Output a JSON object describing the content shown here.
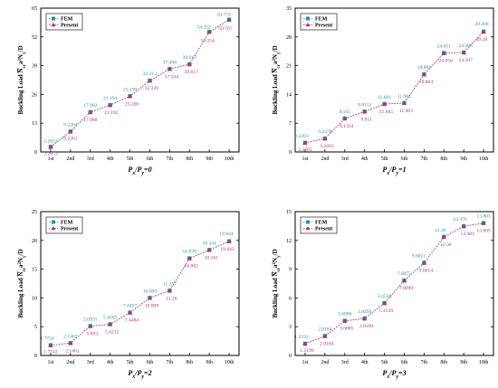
{
  "colors": {
    "fem": "#2e8f9a",
    "present": "#a23a7c",
    "fem_line": "#4aa7ae",
    "present_line": "#b44a8a"
  },
  "legend": {
    "fem": "FEM",
    "present": "Present"
  },
  "chart_data": [
    {
      "type": "line",
      "categories": [
        "1st",
        "2nd",
        "3rd",
        "4th",
        "5th",
        "6th",
        "7th",
        "8th",
        "9th",
        "10th"
      ],
      "xlabel": "P_x/P_y=0",
      "ylabel": "Buckling Load N̄_cr a²N_y/D",
      "ylim": [
        0,
        65
      ],
      "yticks": [
        0,
        13,
        26,
        39,
        52,
        65
      ],
      "xlabel_main": "P",
      "xlabel_sub1": "x",
      "xlabel_mid": "/P",
      "xlabel_sub2": "y",
      "xlabel_tail": "=0",
      "series": [
        {
          "name": "FEM",
          "values": [
            2.2653,
            9.2264,
            17.982,
            21.194,
            25.199,
            32.212,
            37.498,
            39.617,
            54.252,
            59.779
          ],
          "labels": [
            "2.2653",
            "9.2264",
            "17.982",
            "21.194",
            "25.199",
            "32.212",
            "37.498",
            "39.617",
            "54.252",
            "59.779"
          ]
        },
        {
          "name": "Present",
          "values": [
            2.2653,
            9.2262,
            17.988,
            21.192,
            25.206,
            32.226,
            37.504,
            39.617,
            54.254,
            59.767
          ],
          "labels": [
            "2.2653",
            "9.2262",
            "17.988",
            "21.192",
            "25.206",
            "32.226",
            "37.504",
            "39.617",
            "54.254",
            "59.767"
          ]
        }
      ]
    },
    {
      "type": "line",
      "categories": [
        "1st",
        "2nd",
        "3rd",
        "4th",
        "5th",
        "6th",
        "7th",
        "8th",
        "9th",
        "10th"
      ],
      "ylim": [
        0,
        35
      ],
      "yticks": [
        0,
        7,
        14,
        21,
        28,
        35
      ],
      "xlabel_main": "P",
      "xlabel_sub1": "x",
      "xlabel_mid": "/P",
      "xlabel_sub2": "y",
      "xlabel_tail": "=1",
      "series": [
        {
          "name": "FEM",
          "values": [
            2.2203,
            3.2478,
            8.135,
            9.8113,
            11.661,
            11.901,
            18.881,
            24.051,
            24.206,
            29.268
          ],
          "labels": [
            "2.2203",
            "3.2478",
            "8.135",
            "9.8113",
            "11.661",
            "11.901",
            "18.881",
            "24.051",
            "24.206",
            "29.268"
          ]
        },
        {
          "name": "Present",
          "values": [
            2.2203,
            3.2493,
            8.1354,
            9.811,
            11.665,
            11.903,
            18.884,
            24.056,
            24.207,
            29.28
          ],
          "labels": [
            "2.2203",
            "3.2493",
            "8.1354",
            "9.811",
            "11.665",
            "11.903",
            "18.884",
            "24.056",
            "24.207",
            "29.28"
          ]
        }
      ]
    },
    {
      "type": "line",
      "categories": [
        "1st",
        "2nd",
        "3rd",
        "4th",
        "5th",
        "6th",
        "7th",
        "8th",
        "9th",
        "10th"
      ],
      "ylim": [
        0,
        25
      ],
      "yticks": [
        0,
        5,
        10,
        15,
        20,
        25
      ],
      "xlabel_main": "P",
      "xlabel_sub1": "x",
      "xlabel_mid": "/P",
      "xlabel_sub2": "y",
      "xlabel_tail": "=2",
      "series": [
        {
          "name": "FEM",
          "values": [
            1.7734,
            2.1462,
            5.0931,
            5.4205,
            7.4457,
            10.009,
            11.257,
            16.878,
            18.334,
            19.844
          ],
          "labels": [
            "1.7734",
            "2.1462",
            "5.0931",
            "5.4205",
            "7.4457",
            "10.009",
            "11.257",
            "16.878",
            "18.334",
            "19.844"
          ]
        },
        {
          "name": "Present",
          "values": [
            1.7742,
            2.1461,
            5.093,
            5.4212,
            7.4484,
            10.009,
            11.26,
            16.882,
            18.341,
            19.843
          ],
          "labels": [
            "1.7742",
            "2.1461",
            "5.093",
            "5.4212",
            "7.4484",
            "10.009",
            "11.26",
            "16.882",
            "18.341",
            "19.843"
          ]
        }
      ]
    },
    {
      "type": "line",
      "categories": [
        "1st",
        "2nd",
        "3rd",
        "4th",
        "5th",
        "6th",
        "7th",
        "8th",
        "9th",
        "10th"
      ],
      "ylim": [
        0,
        15
      ],
      "yticks": [
        0,
        3,
        6,
        9,
        12,
        15
      ],
      "xlabel_main": "P",
      "xlabel_sub1": "x",
      "xlabel_mid": "/P",
      "xlabel_sub2": "y",
      "xlabel_tail": "=3",
      "series": [
        {
          "name": "FEM",
          "values": [
            1.2193,
            2.0184,
            3.6086,
            3.8494,
            5.4518,
            7.8075,
            9.6611,
            12.36,
            13.476,
            13.803
          ],
          "labels": [
            "1.2193",
            "2.0184",
            "3.6086",
            "3.8494",
            "5.4518",
            "7.8075",
            "9.6611",
            "12.36",
            "13.476",
            "13.803"
          ]
        },
        {
          "name": "Present",
          "values": [
            1.2199,
            2.0184,
            3.6085,
            3.8499,
            5.4539,
            7.8099,
            9.6614,
            12.36,
            13.481,
            13.805
          ],
          "labels": [
            "1.2199",
            "2.0184",
            "3.6085",
            "3.8499",
            "5.4539",
            "7.8099",
            "9.6614",
            "12.36",
            "13.481",
            "13.805"
          ]
        }
      ]
    }
  ],
  "ylabel_text": {
    "main": "Buckling Load ",
    "n": "N",
    "sup": "cr",
    "a": "a",
    "sq": "2",
    "ny": "N",
    "nysub": "y",
    "tail": "/D"
  }
}
